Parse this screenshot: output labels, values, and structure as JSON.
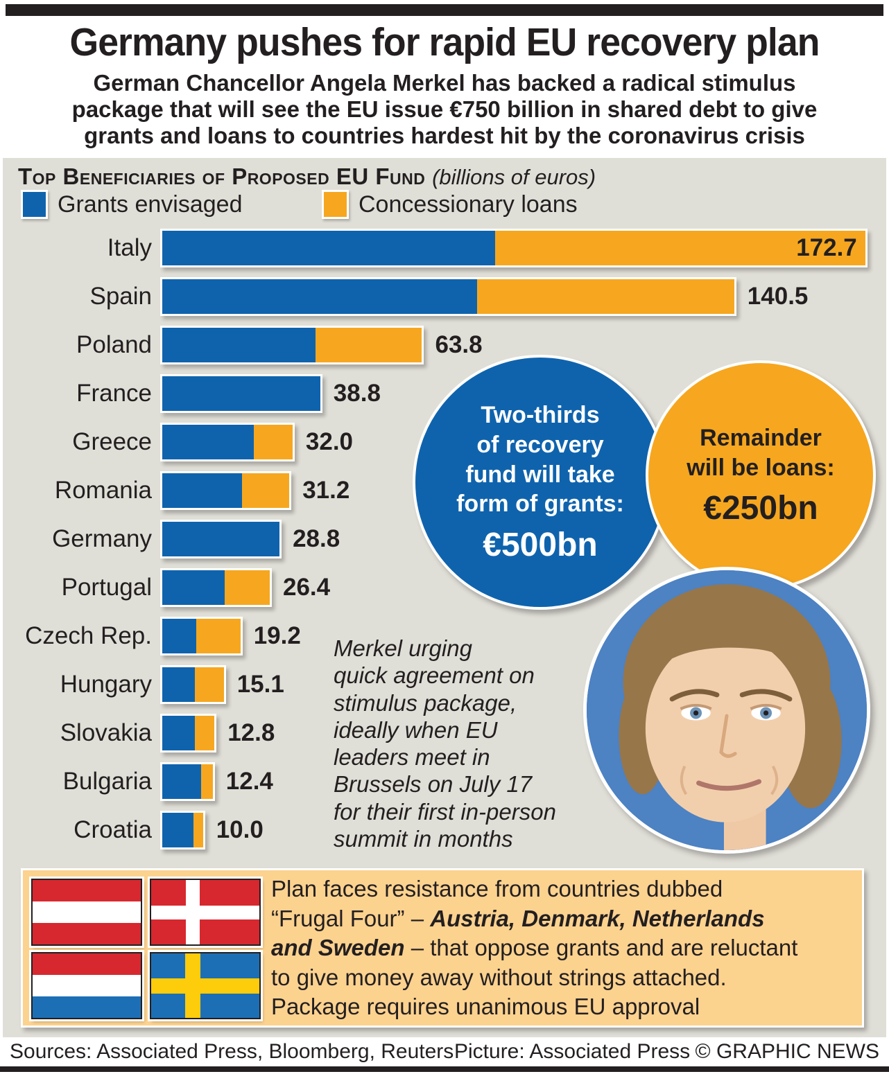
{
  "masthead": {
    "title": "Germany pushes for rapid EU recovery plan",
    "standfirst": "German Chancellor Angela Merkel has backed a radical stimulus\npackage that will see the EU issue €750 billion in shared debt to give\ngrants and loans to countries hardest hit by the coronavirus crisis"
  },
  "chart_section": {
    "heading": "Top Beneficiaries of Proposed EU Fund",
    "heading_note": "(billions of euros)"
  },
  "chart_data": {
    "type": "bar",
    "orientation": "horizontal",
    "units": "billions of euros",
    "title": "Top Beneficiaries of Proposed EU Fund",
    "categories": [
      "Italy",
      "Spain",
      "Poland",
      "France",
      "Greece",
      "Romania",
      "Germany",
      "Portugal",
      "Czech Rep.",
      "Hungary",
      "Slovakia",
      "Bulgaria",
      "Croatia"
    ],
    "series": [
      {
        "name": "Grants envisaged",
        "color": "#0f63ad",
        "values": [
          81.8,
          77.3,
          37.7,
          38.8,
          22.5,
          19.6,
          28.8,
          15.4,
          8.4,
          8.0,
          8.0,
          9.6,
          7.7
        ]
      },
      {
        "name": "Concessionary loans",
        "color": "#f6a71f",
        "values": [
          90.9,
          63.2,
          26.1,
          0,
          9.5,
          11.6,
          0,
          11.0,
          10.8,
          7.1,
          4.8,
          2.8,
          2.3
        ]
      }
    ],
    "totals": [
      172.7,
      140.5,
      63.8,
      38.8,
      32.0,
      31.2,
      28.8,
      26.4,
      19.2,
      15.1,
      12.8,
      12.4,
      10.0
    ],
    "total_labels": [
      "172.7",
      "140.5",
      "63.8",
      "38.8",
      "32.0",
      "31.2",
      "28.8",
      "26.4",
      "19.2",
      "15.1",
      "12.8",
      "12.4",
      "10.0"
    ],
    "value_label_inside": [
      true,
      false,
      false,
      false,
      false,
      false,
      false,
      false,
      false,
      false,
      false,
      false,
      false
    ],
    "xlim": [
      0,
      178
    ],
    "grid": false,
    "legend_position": "top"
  },
  "callouts": {
    "grants_circle": {
      "text": "Two-thirds\nof recovery\nfund will take\nform of grants:",
      "value": "€500bn",
      "color": "#0f63ad"
    },
    "loans_circle": {
      "text": "Remainder\nwill be loans:",
      "value": "€250bn",
      "color": "#f6a71f"
    }
  },
  "annotation": "Merkel urging\nquick agreement on\nstimulus package,\nideally when EU\nleaders meet in\nBrussels on July 17\nfor their first in-person\nsummit in months",
  "photo": {
    "subject": "Angela Merkel"
  },
  "frugal_box": {
    "text_start": "Plan faces resistance from countries dubbed\n“Frugal Four” – ",
    "text_emphasis": "Austria, Denmark, Netherlands\nand Sweden",
    "text_end": " – that oppose grants and are reluctant\nto give money away without strings attached.\nPackage requires unanimous EU approval",
    "flags": [
      "Austria",
      "Denmark",
      "Netherlands",
      "Sweden"
    ]
  },
  "footer": {
    "sources": "Sources: Associated Press, Bloomberg, Reuters",
    "picture": "Picture: Associated Press",
    "credit": "© GRAPHIC NEWS"
  }
}
